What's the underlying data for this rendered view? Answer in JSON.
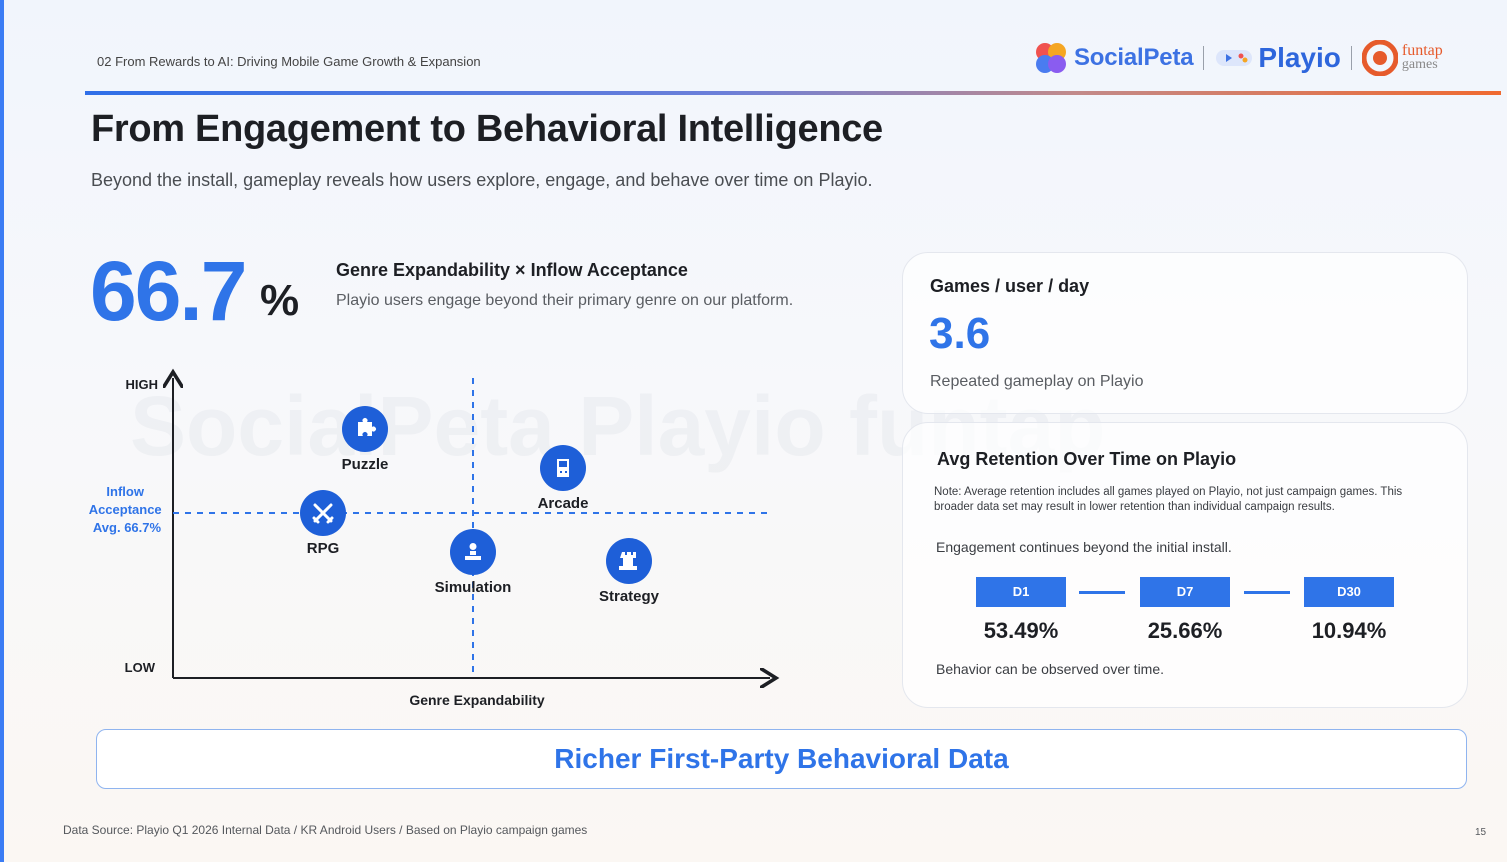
{
  "header": {
    "breadcrumb": "02 From Rewards to AI: Driving Mobile Game Growth & Expansion",
    "logos": {
      "socialpeta": "SocialPeta",
      "playio": "Playio",
      "funtap_top": "funtap",
      "funtap_bottom": "games"
    }
  },
  "title": "From Engagement to Behavioral Intelligence",
  "subtitle": "Beyond the install, gameplay reveals how users explore, engage, and behave over time on Playio.",
  "metric": {
    "value": "66.7",
    "unit": "%",
    "label": "Genre Expandability × Inflow Acceptance",
    "desc": "Playio users engage beyond their primary genre on our platform."
  },
  "chart_data": {
    "type": "scatter",
    "xlabel": "Genre Expandability",
    "y_high_label": "HIGH",
    "y_low_label": "LOW",
    "reference_label": [
      "Inflow",
      "Acceptance",
      "Avg. 66.7%"
    ],
    "xlim": [
      0,
      1
    ],
    "ylim": [
      0,
      1
    ],
    "reference": {
      "x": 0.5,
      "y": 0.55
    },
    "points": [
      {
        "label": "Puzzle",
        "x": 0.32,
        "y": 0.83,
        "icon": "puzzle-icon"
      },
      {
        "label": "Arcade",
        "x": 0.65,
        "y": 0.7,
        "icon": "gameboy-icon"
      },
      {
        "label": "RPG",
        "x": 0.25,
        "y": 0.55,
        "icon": "swords-icon"
      },
      {
        "label": "Simulation",
        "x": 0.5,
        "y": 0.42,
        "icon": "person-icon"
      },
      {
        "label": "Strategy",
        "x": 0.76,
        "y": 0.39,
        "icon": "chess-rook-icon"
      }
    ],
    "colors": {
      "accent": "#2f74e8",
      "point": "#1e5fd8"
    }
  },
  "card_games": {
    "label": "Games / user / day",
    "value": "3.6",
    "desc": "Repeated gameplay on Playio"
  },
  "card_retention": {
    "title": "Avg Retention Over Time on Playio",
    "note": "Note: Average retention includes all games played on Playio, not just campaign games. This broader data set may result in lower retention than individual campaign results.",
    "engagement": "Engagement continues beyond the initial install.",
    "observed": "Behavior can be observed over time.",
    "days": [
      {
        "label": "D1",
        "value": "53.49%"
      },
      {
        "label": "D7",
        "value": "25.66%"
      },
      {
        "label": "D30",
        "value": "10.94%"
      }
    ]
  },
  "banner": "Richer First-Party Behavioral Data",
  "footer": "Data Source: Playio Q1 2026 Internal Data / KR Android Users / Based on Playio campaign games",
  "page_number": "15",
  "watermark": "SocialPeta Playio funtap"
}
